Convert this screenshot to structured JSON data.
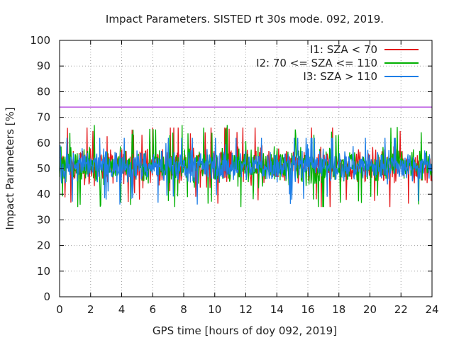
{
  "chart_data": {
    "type": "line",
    "title": "Impact Parameters. SISTED rt 30s mode. 092, 2019.",
    "xlabel": "GPS time [hours of doy 092, 2019]",
    "ylabel": "Impact Parameters [%]",
    "xlim": [
      0,
      24
    ],
    "ylim": [
      0,
      100
    ],
    "xticks": [
      0,
      2,
      4,
      6,
      8,
      10,
      12,
      14,
      16,
      18,
      20,
      22,
      24
    ],
    "yticks": [
      0,
      10,
      20,
      30,
      40,
      50,
      60,
      70,
      80,
      90,
      100
    ],
    "grid": true,
    "legend_position": "top-right",
    "reference_line": {
      "y": 74,
      "color": "#9400d3"
    },
    "series": [
      {
        "name": "I1: SZA < 70",
        "color": "#e41a1c",
        "mean": 51,
        "noise_range": [
          35,
          66
        ]
      },
      {
        "name": "I2: 70 <= SZA <= 110",
        "color": "#00b000",
        "mean": 51,
        "noise_range": [
          35,
          67
        ]
      },
      {
        "name": "I3: SZA > 110",
        "color": "#1e7ee6",
        "mean": 51,
        "noise_range": [
          36,
          62
        ]
      }
    ]
  }
}
